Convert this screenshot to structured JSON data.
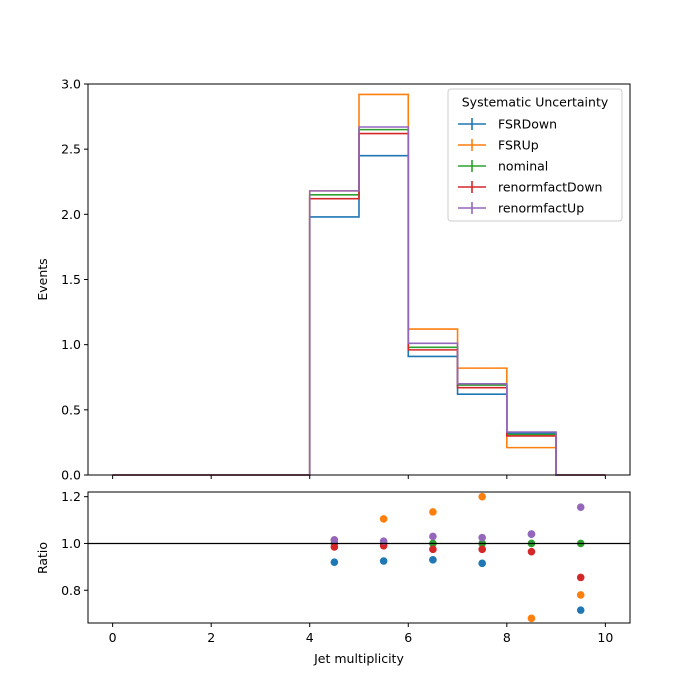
{
  "chart_data": {
    "type": "step",
    "xlabel": "Jet multiplicity",
    "main": {
      "ylabel": "Events",
      "ylim": [
        0,
        3.0
      ],
      "yticks": [
        "0.0",
        "0.5",
        "1.0",
        "1.5",
        "2.0",
        "2.5",
        "3.0"
      ],
      "ytick_values": [
        0,
        0.5,
        1.0,
        1.5,
        2.0,
        2.5,
        3.0
      ]
    },
    "ratio": {
      "ylabel": "Ratio",
      "ylim": [
        0.66,
        1.22
      ],
      "yticks": [
        "0.8",
        "1.0",
        "1.2"
      ],
      "ytick_values": [
        0.8,
        1.0,
        1.2
      ],
      "reference_line": 1.0
    },
    "xlim": [
      -0.5,
      10.5
    ],
    "xticks": [
      "0",
      "2",
      "4",
      "6",
      "8",
      "10"
    ],
    "xtick_values": [
      0,
      2,
      4,
      6,
      8,
      10
    ],
    "bin_edges": [
      0,
      1,
      2,
      3,
      4,
      5,
      6,
      7,
      8,
      9,
      10
    ],
    "legend": {
      "title": "Systematic Uncertainty",
      "position": "top-right"
    },
    "series": [
      {
        "name": "FSRDown",
        "color": "#1f77b4",
        "values": [
          0,
          0,
          0,
          0,
          1.98,
          2.45,
          0.91,
          0.62,
          0.32,
          0
        ],
        "ratio": [
          null,
          null,
          null,
          null,
          0.92,
          0.925,
          0.93,
          0.915,
          1.04,
          0.715
        ]
      },
      {
        "name": "FSRUp",
        "color": "#ff7f0e",
        "values": [
          0,
          0,
          0,
          0,
          2.18,
          2.92,
          1.12,
          0.82,
          0.21,
          0
        ],
        "ratio": [
          null,
          null,
          null,
          null,
          1.015,
          1.105,
          1.135,
          1.2,
          0.68,
          0.78
        ]
      },
      {
        "name": "nominal",
        "color": "#2ca02c",
        "values": [
          0,
          0,
          0,
          0,
          2.15,
          2.65,
          0.98,
          0.69,
          0.31,
          0
        ],
        "ratio": [
          null,
          null,
          null,
          null,
          1.0,
          1.0,
          1.0,
          1.0,
          1.0,
          1.0
        ]
      },
      {
        "name": "renormfactDown",
        "color": "#d62728",
        "values": [
          0,
          0,
          0,
          0,
          2.12,
          2.62,
          0.96,
          0.67,
          0.3,
          0
        ],
        "ratio": [
          null,
          null,
          null,
          null,
          0.985,
          0.99,
          0.975,
          0.975,
          0.965,
          0.855
        ]
      },
      {
        "name": "renormfactUp",
        "color": "#9467bd",
        "values": [
          0,
          0,
          0,
          0,
          2.18,
          2.67,
          1.01,
          0.7,
          0.33,
          0
        ],
        "ratio": [
          null,
          null,
          null,
          null,
          1.015,
          1.01,
          1.03,
          1.025,
          1.04,
          1.155
        ]
      }
    ]
  }
}
